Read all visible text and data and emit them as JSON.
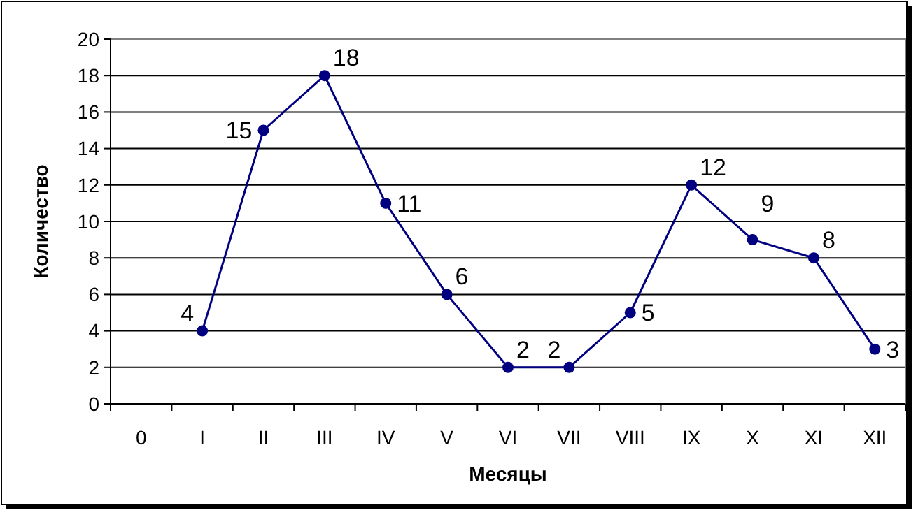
{
  "chart_data": {
    "type": "line",
    "xlabel": "Месяцы",
    "ylabel": "Количество",
    "categories": [
      "0",
      "I",
      "II",
      "III",
      "IV",
      "V",
      "VI",
      "VII",
      "VIII",
      "IX",
      "X",
      "XI",
      "XII"
    ],
    "values": [
      null,
      4,
      15,
      18,
      11,
      6,
      2,
      2,
      5,
      12,
      9,
      8,
      3
    ],
    "color": "#000080",
    "ylim": [
      0,
      20
    ],
    "yticks": [
      0,
      2,
      4,
      6,
      8,
      10,
      12,
      14,
      16,
      18,
      20
    ],
    "grid": "y",
    "marker": "circle",
    "line_style": "solid",
    "data_labels": true
  }
}
